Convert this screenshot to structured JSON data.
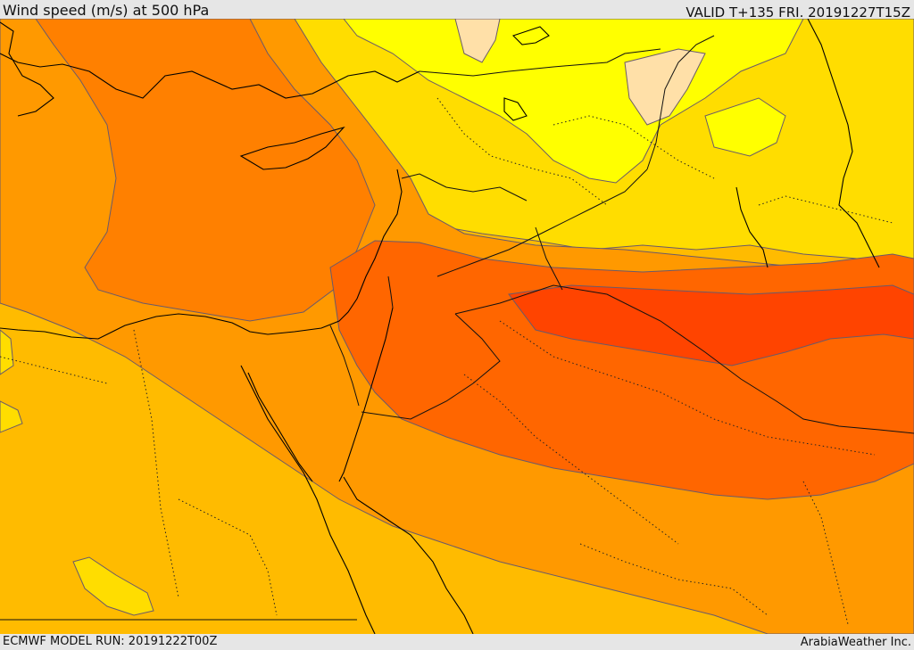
{
  "header": {
    "title": "Wind speed (m/s) at 500 hPa",
    "valid_time": "VALID T+135 FRI. 20191227T15Z"
  },
  "footer": {
    "model_run": "ECMWF MODEL RUN: 20191222T00Z",
    "credit": "ArabiaWeather Inc."
  },
  "map": {
    "variable": "wind speed",
    "pressure_level_hpa": 500,
    "fill_colors": {
      "band_1": "#ffe0a8",
      "band_2": "#ffff00",
      "band_3": "#ffdd00",
      "band_4": "#ffbb00",
      "band_5": "#ff9900",
      "band_6": "#ff8000",
      "band_7": "#ff6600",
      "band_8": "#ff4400"
    },
    "contour_line_color": "#6a5a6a",
    "coastline_color": "#000000"
  }
}
